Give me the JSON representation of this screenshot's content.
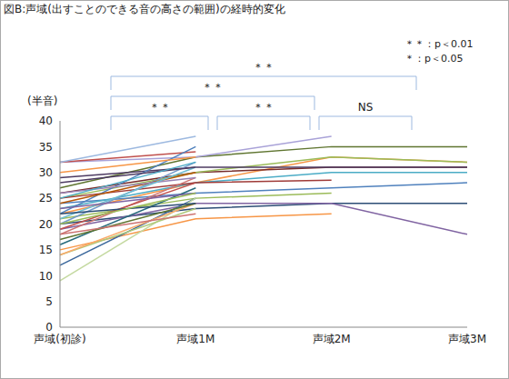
{
  "chart_data": {
    "type": "line",
    "title": "図B:声域(出すことのできる音の高さの範囲)の経時的変化",
    "y_label": "(半音)",
    "categories": [
      "声域(初診)",
      "声域1M",
      "声域2M",
      "声域3M"
    ],
    "ylim": [
      0,
      40
    ],
    "yticks": [
      0,
      5,
      10,
      15,
      20,
      25,
      30,
      35,
      40
    ],
    "grid": false,
    "significance_legend": [
      "＊＊：p＜0.01",
      "＊：p＜0.05"
    ],
    "annotations": [
      {
        "from": "声域(初診)",
        "to": "声域1M",
        "text": "＊＊"
      },
      {
        "from": "声域1M",
        "to": "声域2M",
        "text": "＊＊"
      },
      {
        "from": "声域2M",
        "to": "声域3M",
        "text": "NS"
      },
      {
        "from": "声域(初診)",
        "to": "声域2M",
        "text": "＊＊"
      },
      {
        "from": "声域(初診)",
        "to": "声域3M",
        "text": "＊＊"
      }
    ],
    "series": [
      {
        "color": "#5F7530",
        "values": [
          27,
          33,
          35,
          35
        ]
      },
      {
        "color": "#F79646",
        "values": [
          22,
          28,
          33,
          32
        ]
      },
      {
        "color": "#772C2A",
        "values": [
          26,
          30,
          31,
          31
        ]
      },
      {
        "color": "#4F81BD",
        "values": [
          24,
          26,
          27,
          28
        ]
      },
      {
        "color": "#2C4D75",
        "values": [
          20,
          23,
          24,
          24
        ]
      },
      {
        "color": "#8064A2",
        "values": [
          19,
          24,
          24,
          18
        ]
      },
      {
        "color": "#9BBB59",
        "values": [
          25,
          30,
          33,
          32
        ]
      },
      {
        "color": "#4BACC6",
        "values": [
          23,
          28,
          30,
          30
        ]
      },
      {
        "color": "#4D3B62",
        "values": [
          29,
          31,
          31,
          31
        ]
      },
      {
        "color": "#A9A2D8",
        "values": [
          32,
          33,
          37,
          null
        ]
      },
      {
        "color": "#F79646",
        "values": [
          15,
          21,
          22,
          null
        ]
      },
      {
        "color": "#C0504D",
        "values": [
          32,
          34,
          null,
          null
        ]
      },
      {
        "color": "#9BBB59",
        "values": [
          21,
          25,
          26,
          null
        ]
      },
      {
        "color": "#9F3B38",
        "values": [
          25,
          28,
          28.5,
          null
        ]
      },
      {
        "color": "#9DB9E0",
        "values": [
          32,
          37,
          null,
          null
        ]
      },
      {
        "color": "#3A679C",
        "values": [
          12,
          25,
          null,
          null
        ]
      },
      {
        "color": "#C4D9A0",
        "values": [
          9,
          25,
          null,
          null
        ]
      },
      {
        "color": "#AFC97A",
        "values": [
          14,
          23,
          null,
          null
        ]
      },
      {
        "color": "#F9AB6B",
        "values": [
          14,
          24,
          null,
          null
        ]
      },
      {
        "color": "#276A7C",
        "values": [
          16,
          27,
          null,
          null
        ]
      },
      {
        "color": "#CD7371",
        "values": [
          18,
          29,
          null,
          null
        ]
      },
      {
        "color": "#729ACA",
        "values": [
          20,
          32,
          null,
          null
        ]
      },
      {
        "color": "#4F81BD",
        "values": [
          22,
          35,
          null,
          null
        ]
      },
      {
        "color": "#B65708",
        "values": [
          24,
          30,
          null,
          null
        ]
      },
      {
        "color": "#9983B5",
        "values": [
          26,
          29,
          null,
          null
        ]
      },
      {
        "color": "#6FBDD1",
        "values": [
          21,
          31,
          null,
          null
        ]
      },
      {
        "color": "#C0504D",
        "values": [
          19,
          28,
          null,
          null
        ]
      },
      {
        "color": "#8064A2",
        "values": [
          23,
          26,
          null,
          null
        ]
      },
      {
        "color": "#5F7530",
        "values": [
          17,
          24,
          null,
          null
        ]
      },
      {
        "color": "#4D3B62",
        "values": [
          28,
          31,
          null,
          null
        ]
      },
      {
        "color": "#F79646",
        "values": [
          30,
          33,
          null,
          null
        ]
      },
      {
        "color": "#2C4D75",
        "values": [
          22,
          24,
          null,
          null
        ]
      },
      {
        "color": "#9BBB59",
        "values": [
          20,
          26,
          null,
          null
        ]
      },
      {
        "color": "#4BACC6",
        "values": [
          25,
          32,
          null,
          null
        ]
      },
      {
        "color": "#CD7371",
        "values": [
          18,
          22,
          null,
          null
        ]
      }
    ]
  }
}
